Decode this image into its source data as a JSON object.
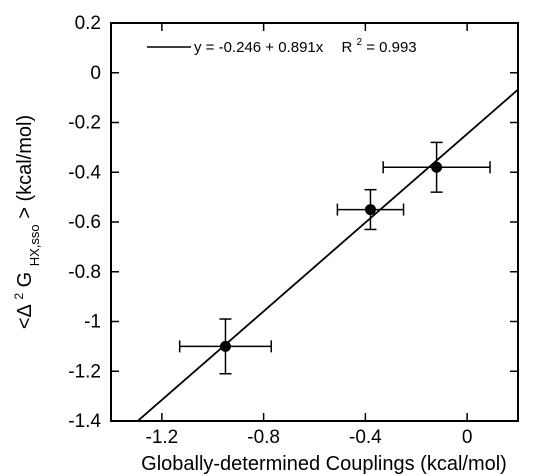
{
  "chart_data": {
    "type": "scatter",
    "xlabel": "Globally-determined Couplings (kcal/mol)",
    "ylabel_parts": {
      "open": "<Δ",
      "sup": "2",
      "g": "G",
      "sub": "HX,sso",
      "close": "> (kcal/mol)"
    },
    "xlim": [
      -1.4,
      0.2
    ],
    "ylim": [
      -1.4,
      0.2
    ],
    "x_ticks": [
      {
        "value": -1.2,
        "label": "-1.2"
      },
      {
        "value": -0.8,
        "label": "-0.8"
      },
      {
        "value": -0.4,
        "label": "-0.4"
      },
      {
        "value": 0,
        "label": "0"
      }
    ],
    "y_ticks": [
      {
        "value": 0.2,
        "label": "0.2"
      },
      {
        "value": 0,
        "label": "0"
      },
      {
        "value": -0.2,
        "label": "-0.2"
      },
      {
        "value": -0.4,
        "label": "-0.4"
      },
      {
        "value": -0.6,
        "label": "-0.6"
      },
      {
        "value": -0.8,
        "label": "-0.8"
      },
      {
        "value": -1.0,
        "label": "-1"
      },
      {
        "value": -1.2,
        "label": "-1.2"
      },
      {
        "value": -1.4,
        "label": "-1.4"
      }
    ],
    "points": [
      {
        "x": -0.95,
        "y": -1.1,
        "xerr": 0.18,
        "yerr": 0.11
      },
      {
        "x": -0.38,
        "y": -0.55,
        "xerr": 0.13,
        "yerr": 0.08
      },
      {
        "x": -0.12,
        "y": -0.38,
        "xerr": 0.21,
        "yerr": 0.1
      }
    ],
    "fit": {
      "intercept": -0.246,
      "slope": 0.891
    },
    "legend": {
      "equation": "y = -0.246 + 0.891x",
      "r2_prefix": "R",
      "r2_sup": "2",
      "r2_value": "= 0.993",
      "position": "top-left"
    }
  }
}
